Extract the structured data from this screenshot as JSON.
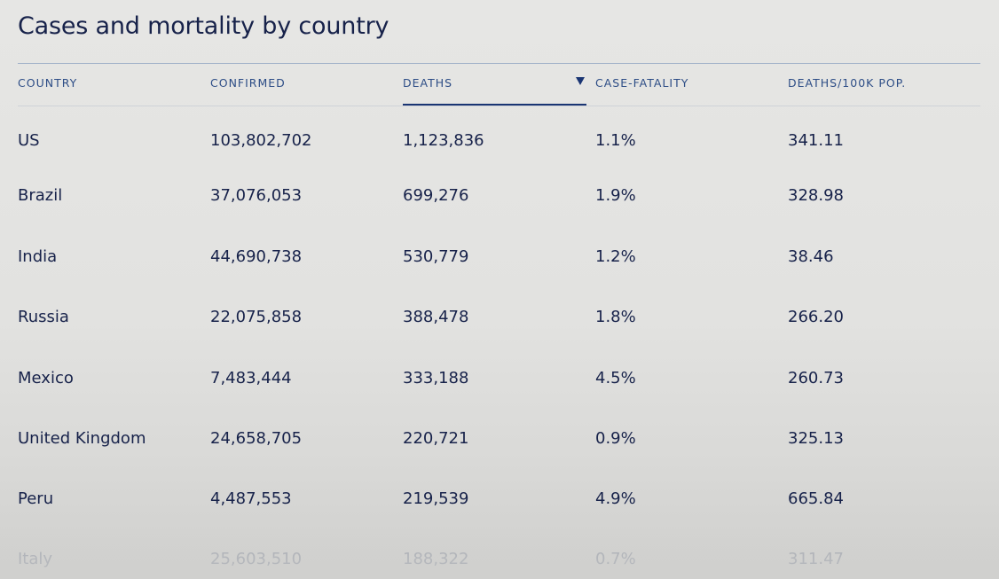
{
  "page": {
    "title": "Cases and mortality by country"
  },
  "table": {
    "columns": [
      {
        "label": "COUNTRY",
        "sortable": true
      },
      {
        "label": "CONFIRMED",
        "sortable": true
      },
      {
        "label": "DEATHS",
        "sortable": true,
        "sorted": "descending"
      },
      {
        "label": "CASE-FATALITY",
        "sortable": true
      },
      {
        "label": "DEATHS/100K POP.",
        "sortable": true
      }
    ],
    "rows": [
      {
        "country": "US",
        "confirmed": "103,802,702",
        "deaths": "1,123,836",
        "case_fatality": "1.1%",
        "deaths_per_100k": "341.11"
      },
      {
        "country": "Brazil",
        "confirmed": "37,076,053",
        "deaths": "699,276",
        "case_fatality": "1.9%",
        "deaths_per_100k": "328.98"
      },
      {
        "country": "India",
        "confirmed": "44,690,738",
        "deaths": "530,779",
        "case_fatality": "1.2%",
        "deaths_per_100k": "38.46"
      },
      {
        "country": "Russia",
        "confirmed": "22,075,858",
        "deaths": "388,478",
        "case_fatality": "1.8%",
        "deaths_per_100k": "266.20"
      },
      {
        "country": "Mexico",
        "confirmed": "7,483,444",
        "deaths": "333,188",
        "case_fatality": "4.5%",
        "deaths_per_100k": "260.73"
      },
      {
        "country": "United Kingdom",
        "confirmed": "24,658,705",
        "deaths": "220,721",
        "case_fatality": "0.9%",
        "deaths_per_100k": "325.13"
      },
      {
        "country": "Peru",
        "confirmed": "4,487,553",
        "deaths": "219,539",
        "case_fatality": "4.9%",
        "deaths_per_100k": "665.84"
      },
      {
        "country": "Italy",
        "confirmed": "25,603,510",
        "deaths": "188,322",
        "case_fatality": "0.7%",
        "deaths_per_100k": "311.47"
      }
    ]
  },
  "colors": {
    "text": "#17224a",
    "header_text": "#2d4d86",
    "active_underline": "#1a3573",
    "faded_text": "#a7abb3"
  }
}
